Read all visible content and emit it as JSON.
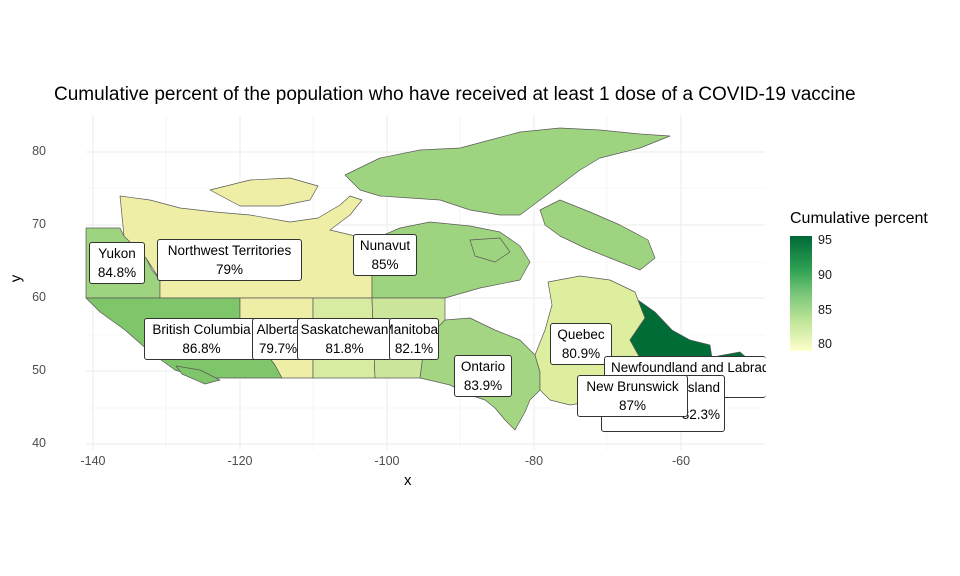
{
  "title": "Cumulative percent of the population who have received at least 1 dose of a COVID-19 vaccine",
  "axes": {
    "x_label": "x",
    "y_label": "y",
    "x_ticks": [
      "-140",
      "-120",
      "-100",
      "-80",
      "-60"
    ],
    "y_ticks": [
      "80",
      "70",
      "60",
      "50",
      "40"
    ]
  },
  "legend": {
    "title": "Cumulative percent",
    "ticks": [
      "95",
      "90",
      "85",
      "80"
    ]
  },
  "colors": {
    "low": "#ffffcc",
    "mid": "#78c679",
    "high": "#006837",
    "grid": "#ebebeb",
    "border": "#5a5a5a"
  },
  "regions": [
    {
      "name": "Yukon",
      "value": "84.8%"
    },
    {
      "name": "Northwest Territories",
      "value": "79%"
    },
    {
      "name": "Nunavut",
      "value": "85%"
    },
    {
      "name": "British Columbia",
      "value": "86.8%"
    },
    {
      "name": "Alberta",
      "value": "79.7%"
    },
    {
      "name": "Saskatchewan",
      "value": "81.8%"
    },
    {
      "name": "Manitoba",
      "value": "82.1%"
    },
    {
      "name": "Ontario",
      "value": "83.9%"
    },
    {
      "name": "Quebec",
      "value": "80.9%"
    },
    {
      "name": "Newfoundland and Labrador",
      "value": ""
    },
    {
      "name": "Prince Edward Island",
      "value": "82.3%"
    },
    {
      "name": "New Brunswick",
      "value": "87%"
    }
  ]
}
